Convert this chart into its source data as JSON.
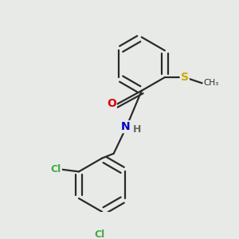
{
  "background_color": "#e8eae8",
  "bond_color": "#2a2a2a",
  "atom_colors": {
    "O": "#dd0000",
    "N": "#0000cc",
    "S": "#ccaa00",
    "Cl": "#44aa44",
    "H": "#666666",
    "C": "#2a2a2a"
  },
  "figsize": [
    3.0,
    3.0
  ],
  "dpi": 100
}
